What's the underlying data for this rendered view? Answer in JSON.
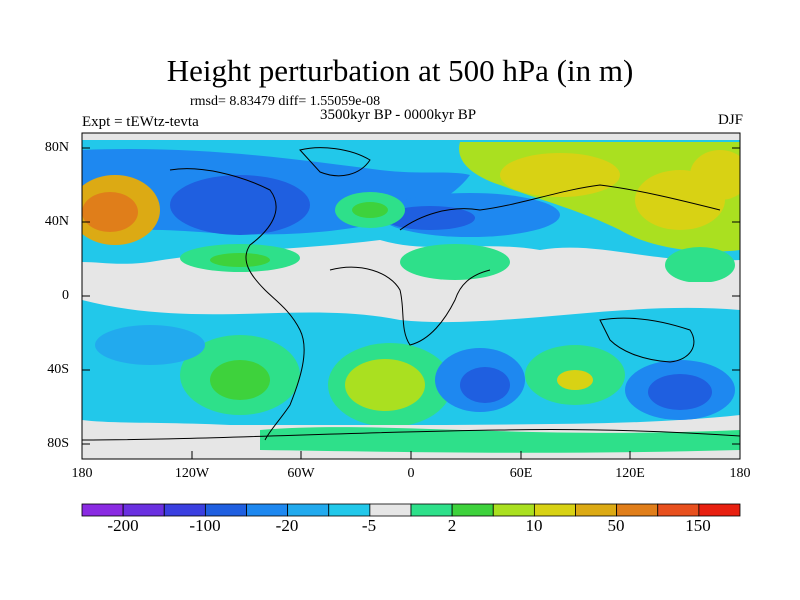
{
  "title": "Height perturbation at 500 hPa (in m)",
  "stats": "rmsd= 8.83479 diff= 1.55059e-08",
  "period": "3500kyr BP - 0000kyr BP",
  "experiment": "Expt = tEWtz-tevta",
  "season": "DJF",
  "axes": {
    "lat_ticks": [
      "80N",
      "40N",
      "0",
      "40S",
      "80S"
    ],
    "lon_ticks": [
      "180",
      "120W",
      "60W",
      "0",
      "60E",
      "120E",
      "180"
    ]
  },
  "colorbar": {
    "labels": [
      "-200",
      "-100",
      "-20",
      "-5",
      "2",
      "10",
      "50",
      "150"
    ],
    "colors": [
      "#8a2be2",
      "#6a30e0",
      "#3a3fe0",
      "#1f5fe0",
      "#1e88f0",
      "#22aaee",
      "#22c8ea",
      "#e6e6e6",
      "#2ee08a",
      "#3ed23c",
      "#aae020",
      "#d8d214",
      "#dcaa14",
      "#e07e1a",
      "#e8501e",
      "#e82010"
    ]
  }
}
